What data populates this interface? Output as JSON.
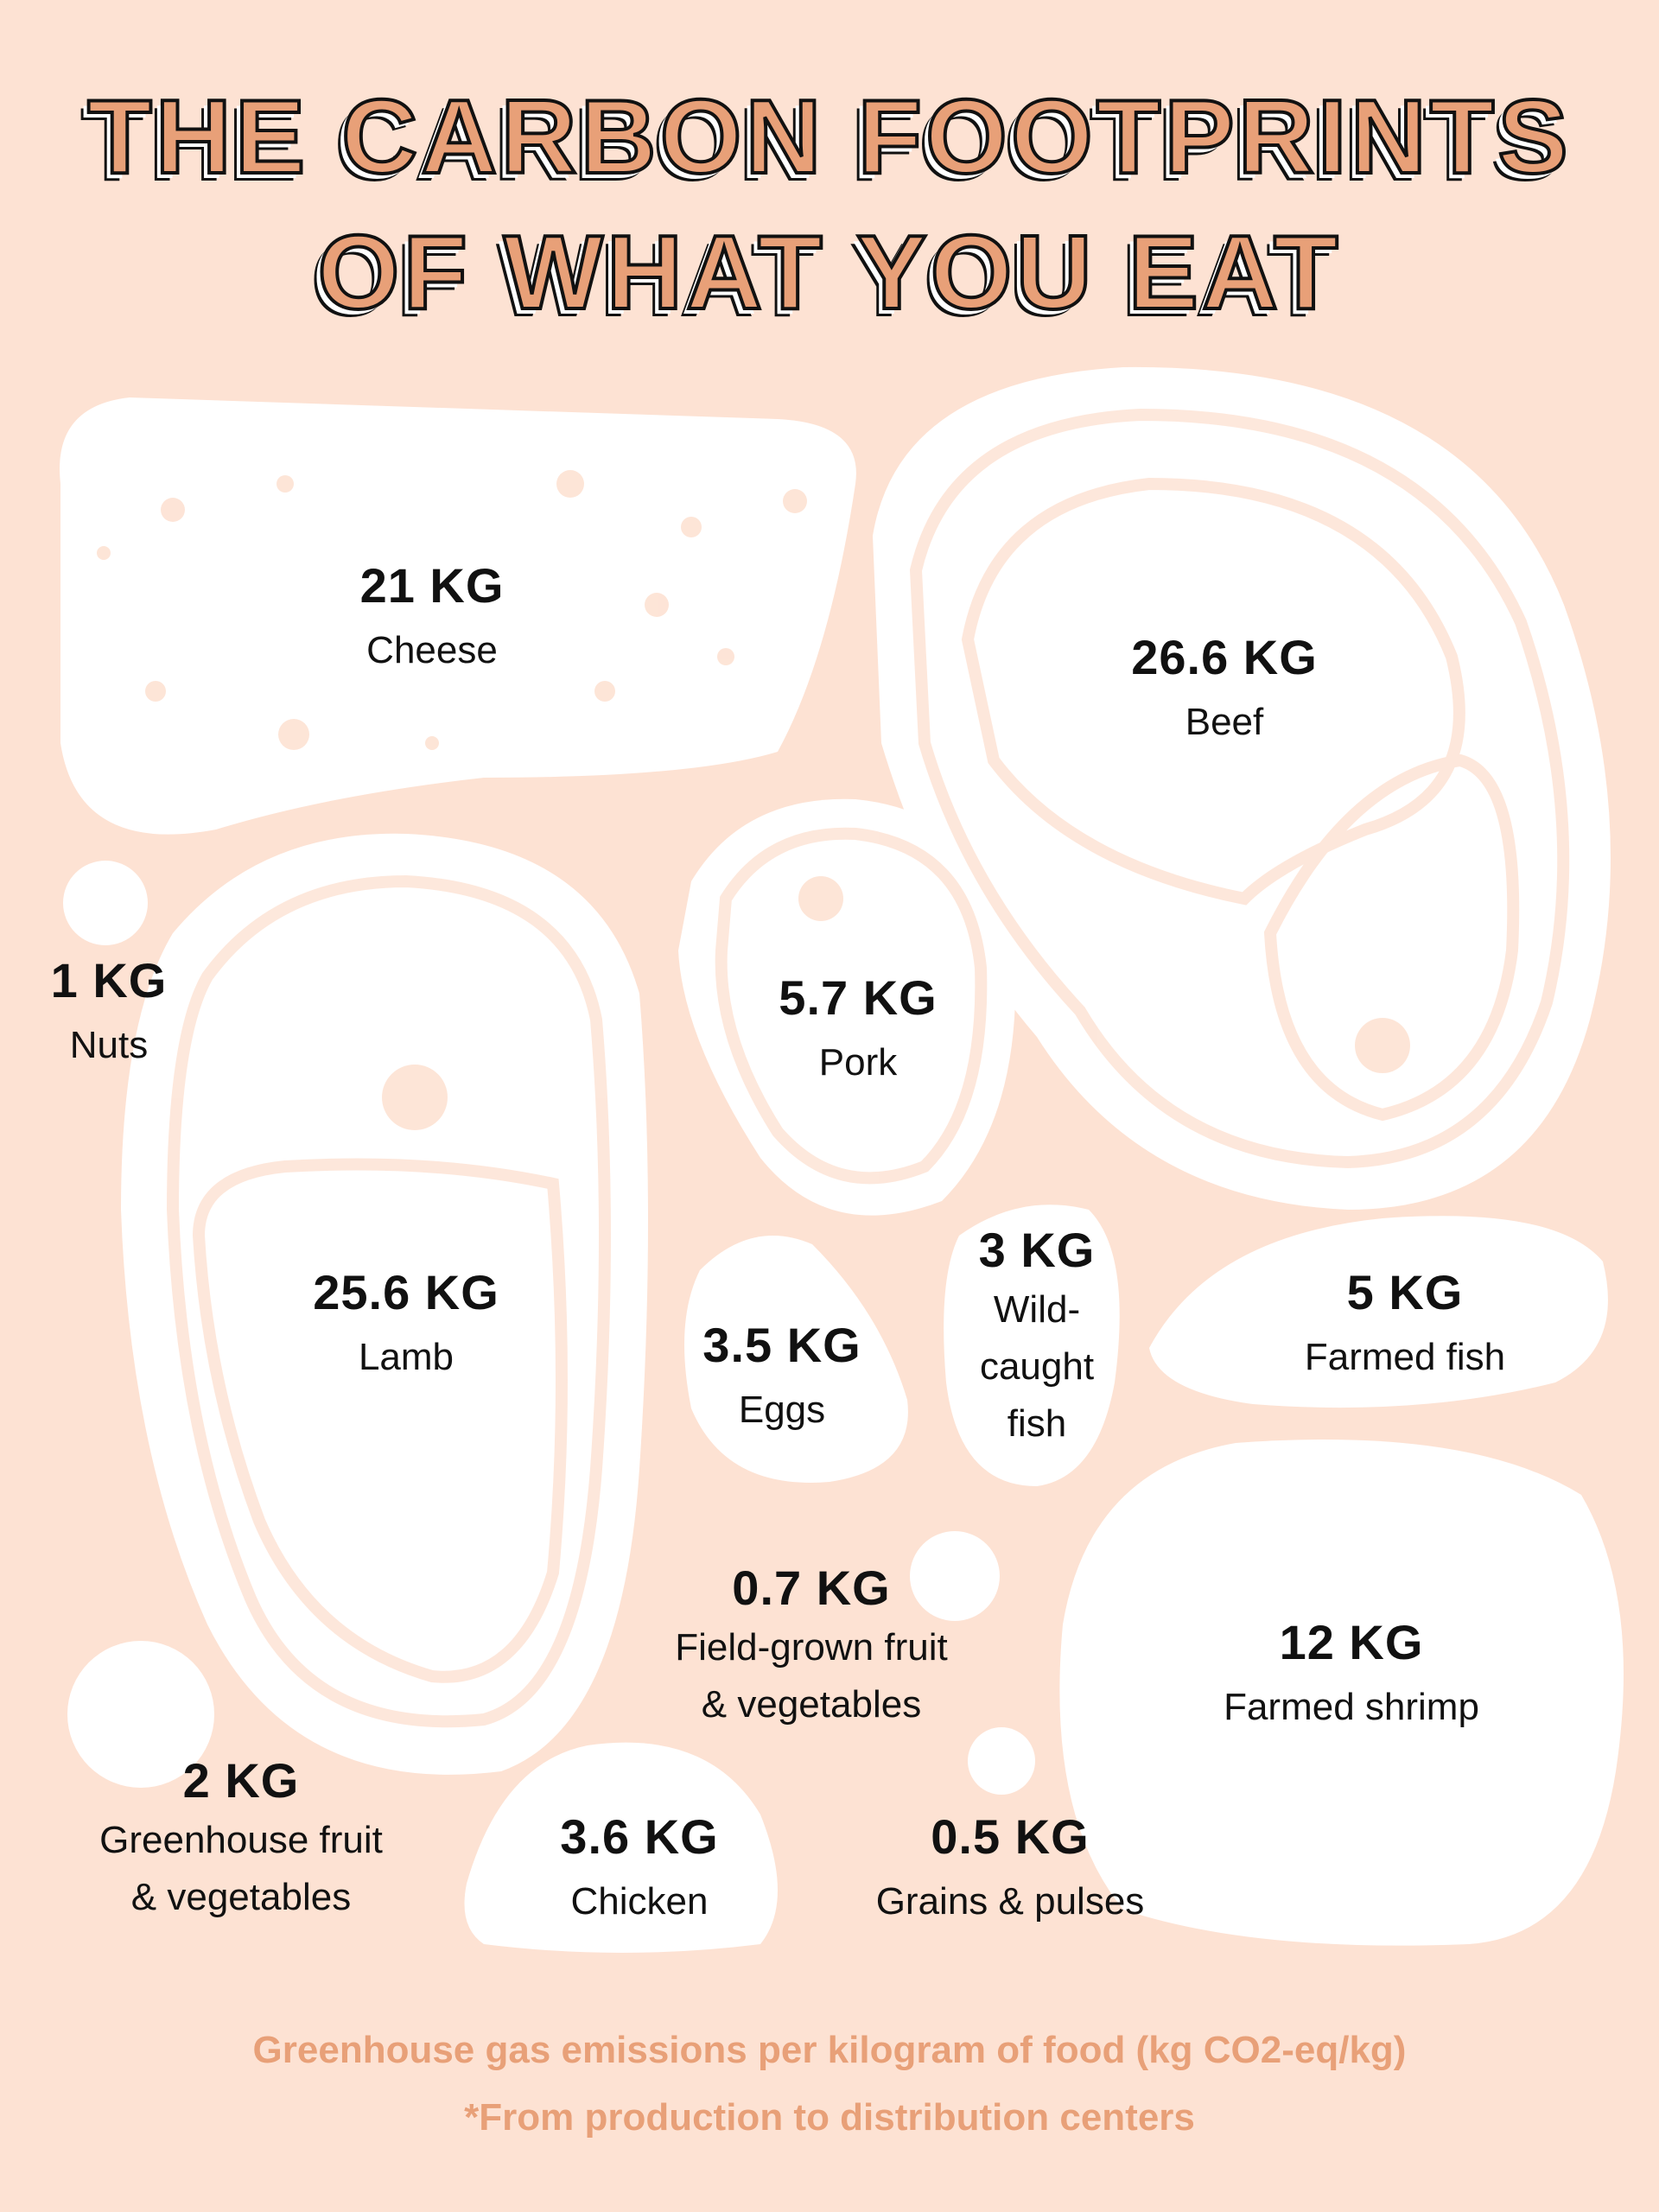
{
  "title": {
    "line1": "THE CARBON FOOTPRINTS",
    "line2": "OF WHAT YOU EAT"
  },
  "colors": {
    "background": "#fde2d3",
    "accent": "#e8a078",
    "shape": "#ffffff",
    "text": "#111111"
  },
  "items": [
    {
      "value": "21 KG",
      "label": "Cheese"
    },
    {
      "value": "26.6 KG",
      "label": "Beef"
    },
    {
      "value": "1 KG",
      "label": "Nuts"
    },
    {
      "value": "5.7 KG",
      "label": "Pork"
    },
    {
      "value": "25.6 KG",
      "label": "Lamb"
    },
    {
      "value": "3.5 KG",
      "label": "Eggs"
    },
    {
      "value": "3 KG",
      "label_lines": [
        "Wild-",
        "caught",
        "fish"
      ]
    },
    {
      "value": "5 KG",
      "label": "Farmed fish"
    },
    {
      "value": "0.7 KG",
      "label_lines": [
        "Field-grown fruit",
        "& vegetables"
      ]
    },
    {
      "value": "12 KG",
      "label": "Farmed shrimp"
    },
    {
      "value": "2 KG",
      "label_lines": [
        "Greenhouse fruit",
        "& vegetables"
      ]
    },
    {
      "value": "3.6 KG",
      "label": "Chicken"
    },
    {
      "value": "0.5 KG",
      "label": "Grains & pulses"
    }
  ],
  "footer": {
    "line1": "Greenhouse gas emissions per kilogram of food (kg CO2-eq/kg)",
    "line2": "*From production to distribution centers"
  }
}
